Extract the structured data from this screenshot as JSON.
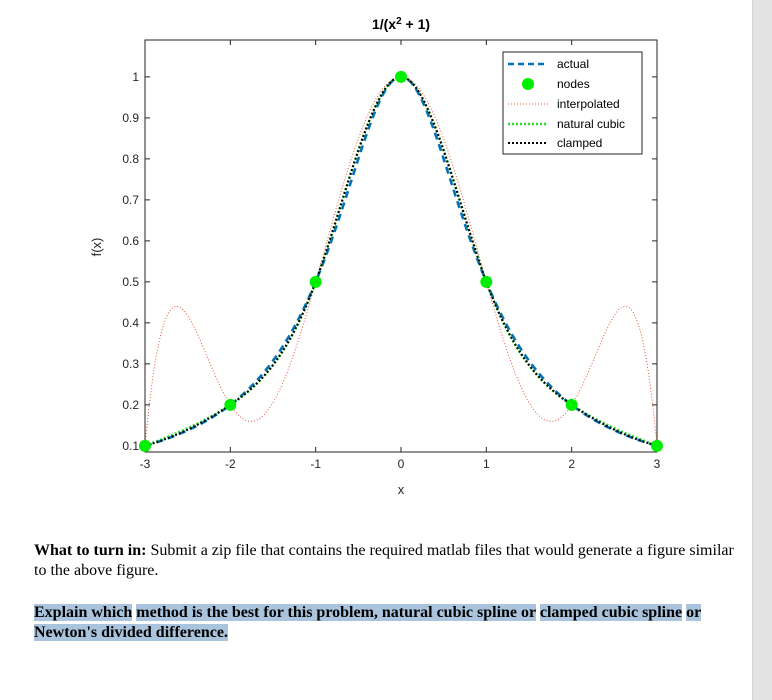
{
  "chart_data": {
    "type": "line",
    "title": "1/(x² + 1)",
    "xlabel": "x",
    "ylabel": "f(x)",
    "xlim": [
      -3,
      3
    ],
    "ylim": [
      0.085,
      1.09
    ],
    "xticks": [
      -3,
      -2,
      -1,
      0,
      1,
      2,
      3
    ],
    "xtick_labels": [
      "-3",
      "-2",
      "-1",
      "0",
      "1",
      "2",
      "3"
    ],
    "yticks": [
      0.1,
      0.2,
      0.3,
      0.4,
      0.5,
      0.6,
      0.7,
      0.8,
      0.9,
      1
    ],
    "ytick_labels": [
      "0.1",
      "0.2",
      "0.3",
      "0.4",
      "0.5",
      "0.6",
      "0.7",
      "0.8",
      "0.9",
      "1"
    ],
    "grid": false,
    "legend_position": "top-right",
    "legend": [
      "actual",
      "nodes",
      "interpolated",
      "natural cubic",
      "clamped"
    ],
    "nodes": {
      "x": [
        -3,
        -2,
        -1,
        0,
        1,
        2,
        3
      ],
      "y": [
        0.1,
        0.2,
        0.5,
        1,
        0.5,
        0.2,
        0.1
      ]
    },
    "series": [
      {
        "name": "actual",
        "function": "1/(x^2+1)",
        "color": "#0072bd",
        "style": "dashed"
      },
      {
        "name": "interpolated",
        "method": "Newton's divided difference",
        "color": "#e8553a",
        "style": "dotted"
      },
      {
        "name": "natural cubic",
        "color": "#2adf2a",
        "style": "dotted"
      },
      {
        "name": "clamped",
        "color": "#000000",
        "style": "dotted"
      }
    ],
    "colors": {
      "nodes": "#00ee00"
    }
  },
  "text": {
    "turnin_label": "What to turn in:",
    "turnin_body": " Submit a zip file that contains the required matlab files that would generate a figure similar to the above figure.",
    "explain_parts": [
      "Explain which",
      "method is the best for this problem, natural cubic spline or",
      "clamped cubic spline",
      "or Newton's divided difference."
    ]
  }
}
